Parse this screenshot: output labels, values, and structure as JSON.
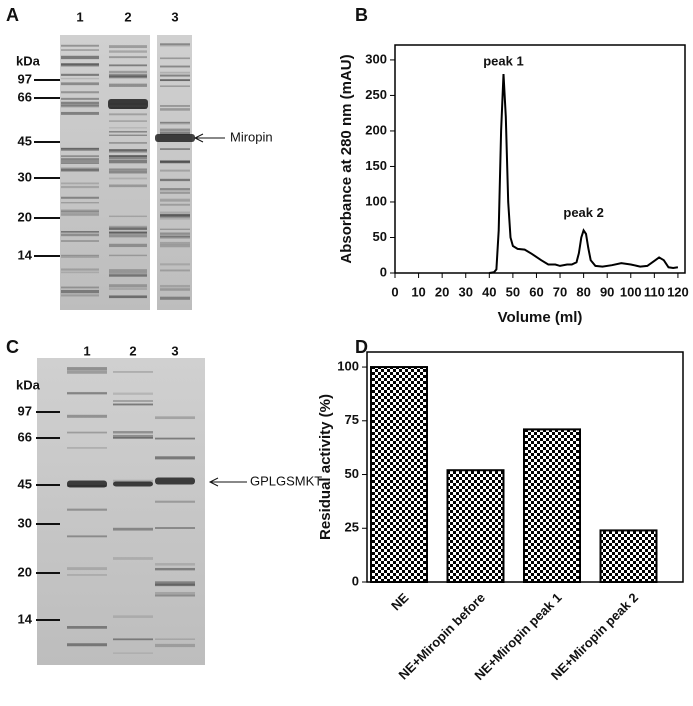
{
  "panel_labels": [
    "A",
    "B",
    "C",
    "D"
  ],
  "gels": [
    {
      "unit": "kDa",
      "markers": [
        97,
        66,
        45,
        30,
        20,
        14
      ],
      "lanes": [
        "1",
        "2",
        "3"
      ],
      "annotation": "Miropin"
    },
    {
      "unit": "kDa",
      "markers": [
        97,
        66,
        45,
        30,
        20,
        14
      ],
      "lanes": [
        "1",
        "2",
        "3"
      ],
      "annotation": "GPLGSMKT"
    }
  ],
  "chart_data": [
    {
      "type": "line",
      "ylabel": "Absorbance at 280 nm (mAU)",
      "xlabel": "Volume (ml)",
      "annotations": [
        "peak 1",
        "peak 2"
      ],
      "x": [
        40,
        42,
        43,
        44,
        45,
        46,
        47,
        48,
        49,
        50,
        52,
        55,
        58,
        62,
        65,
        68,
        70,
        73,
        75,
        77,
        78,
        79,
        80,
        81,
        82,
        83,
        85,
        88,
        92,
        96,
        100,
        104,
        107,
        110,
        112,
        114,
        116,
        118,
        120
      ],
      "series": [
        {
          "color": "#000000",
          "values": [
            0,
            1,
            5,
            60,
            200,
            280,
            220,
            100,
            50,
            38,
            34,
            33,
            27,
            18,
            12,
            12,
            10,
            12,
            12,
            15,
            28,
            50,
            60,
            55,
            35,
            18,
            10,
            9,
            11,
            14,
            12,
            9,
            10,
            17,
            22,
            18,
            8,
            7,
            8
          ]
        }
      ],
      "xlim": [
        0,
        123
      ],
      "xticks": [
        0,
        10,
        20,
        30,
        40,
        50,
        60,
        70,
        80,
        90,
        100,
        110,
        120
      ],
      "ylim": [
        0,
        321
      ],
      "yticks": [
        0,
        50,
        100,
        150,
        200,
        250,
        300
      ]
    },
    {
      "type": "bar",
      "ylabel": "Residual activity (%)",
      "categories": [
        "NE",
        "NE+Miropin before",
        "NE+Miropin peak 1",
        "NE+Miropin peak 2"
      ],
      "values": [
        100,
        52,
        71,
        24
      ],
      "pattern": "checkerboard",
      "ylim": [
        0,
        107
      ],
      "yticks": [
        0,
        25,
        50,
        75,
        100
      ]
    }
  ]
}
